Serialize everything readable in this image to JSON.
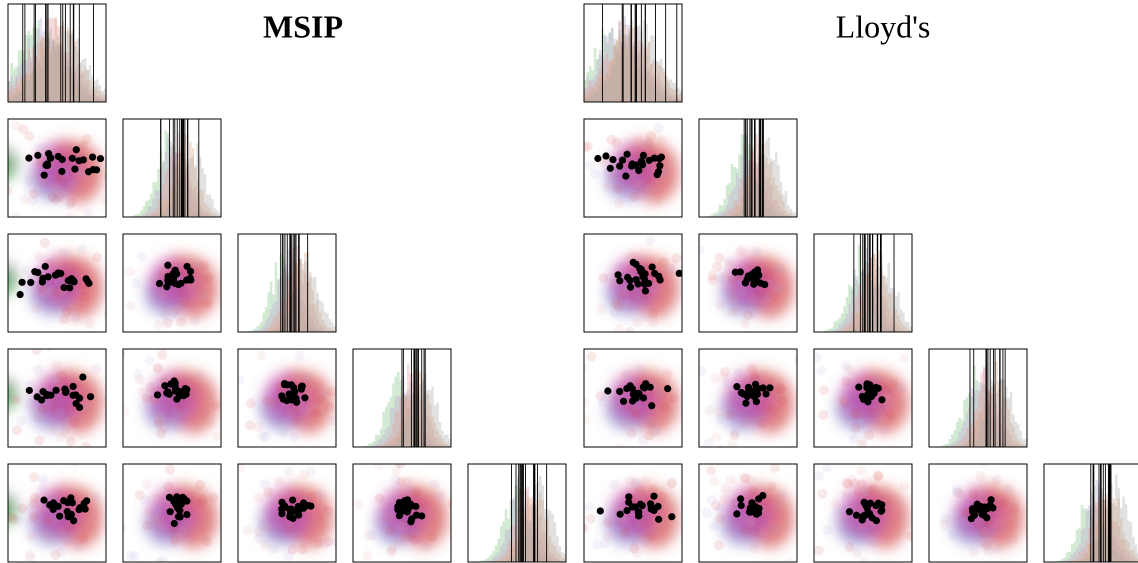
{
  "chart_data": [
    {
      "type": "corner",
      "title": "MSIP"
    },
    {
      "type": "corner",
      "title": "Lloyd's"
    }
  ]
}
